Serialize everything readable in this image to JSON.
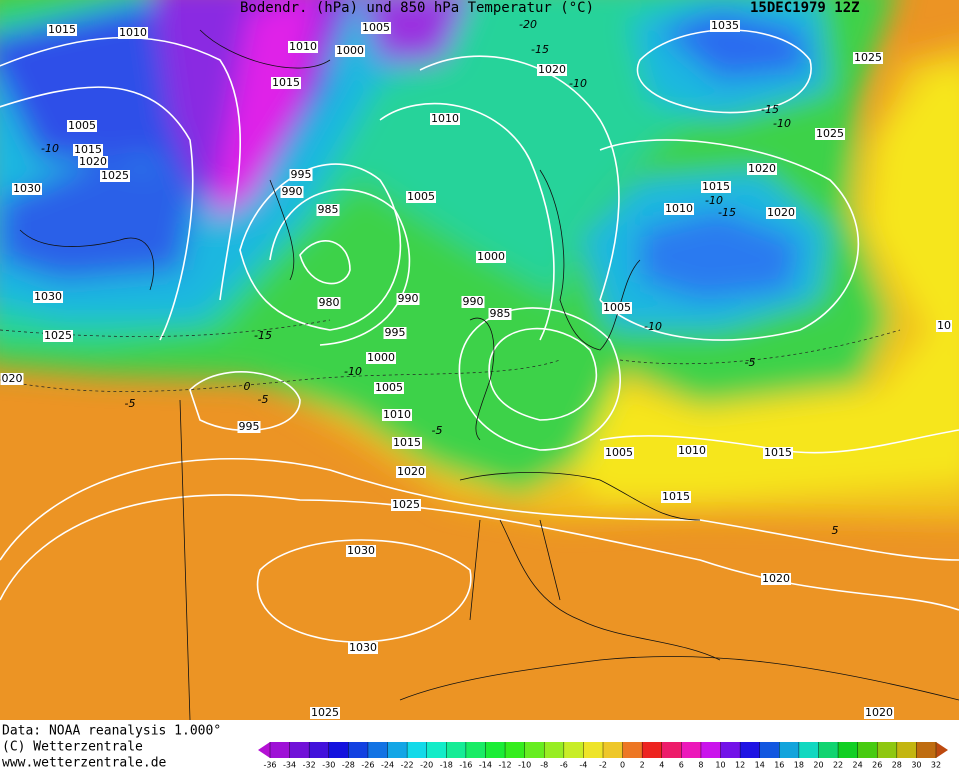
{
  "header": {
    "title": "Bodendr. (hPa) und 850 hPa Temperatur (°C)",
    "date": "15DEC1979 12Z"
  },
  "isobar_labels": [
    "1015",
    "1010",
    "1005",
    "1010",
    "1000",
    "1035",
    "1025",
    "1020",
    "1015",
    "1010",
    "1005",
    "1015",
    "1020",
    "1025",
    "1025",
    "1030",
    "995",
    "990",
    "1020",
    "1015",
    "1005",
    "985",
    "1010",
    "1020",
    "1000",
    "1030",
    "980",
    "990",
    "990",
    "985",
    "1005",
    "1025",
    "995",
    "10",
    "1000",
    "020",
    "1005",
    "995",
    "1010",
    "1015",
    "1005",
    "1010",
    "1015",
    "1020",
    "1015",
    "1025",
    "1030",
    "1020",
    "1030",
    "1025",
    "1020"
  ],
  "temperature_labels": [
    "-20",
    "-15",
    "-10",
    "-15",
    "-10",
    "-10",
    "-15",
    "-10",
    "-5",
    "0",
    "-5",
    "-5",
    "-15",
    "-10",
    "-10",
    "-5",
    "5"
  ],
  "footer": {
    "source": "Data: NOAA reanalysis 1.000°",
    "copyright": "(C) Wetterzentrale",
    "url": "www.wetterzentrale.de"
  },
  "colorbar": {
    "ticks": [
      -36,
      -34,
      -32,
      -30,
      -28,
      -26,
      -24,
      -22,
      -20,
      -18,
      -16,
      -14,
      -12,
      -10,
      -8,
      -6,
      -4,
      -2,
      0,
      2,
      4,
      6,
      8,
      10,
      12,
      14,
      16,
      18,
      20,
      22,
      24,
      26,
      28,
      30,
      32
    ]
  }
}
